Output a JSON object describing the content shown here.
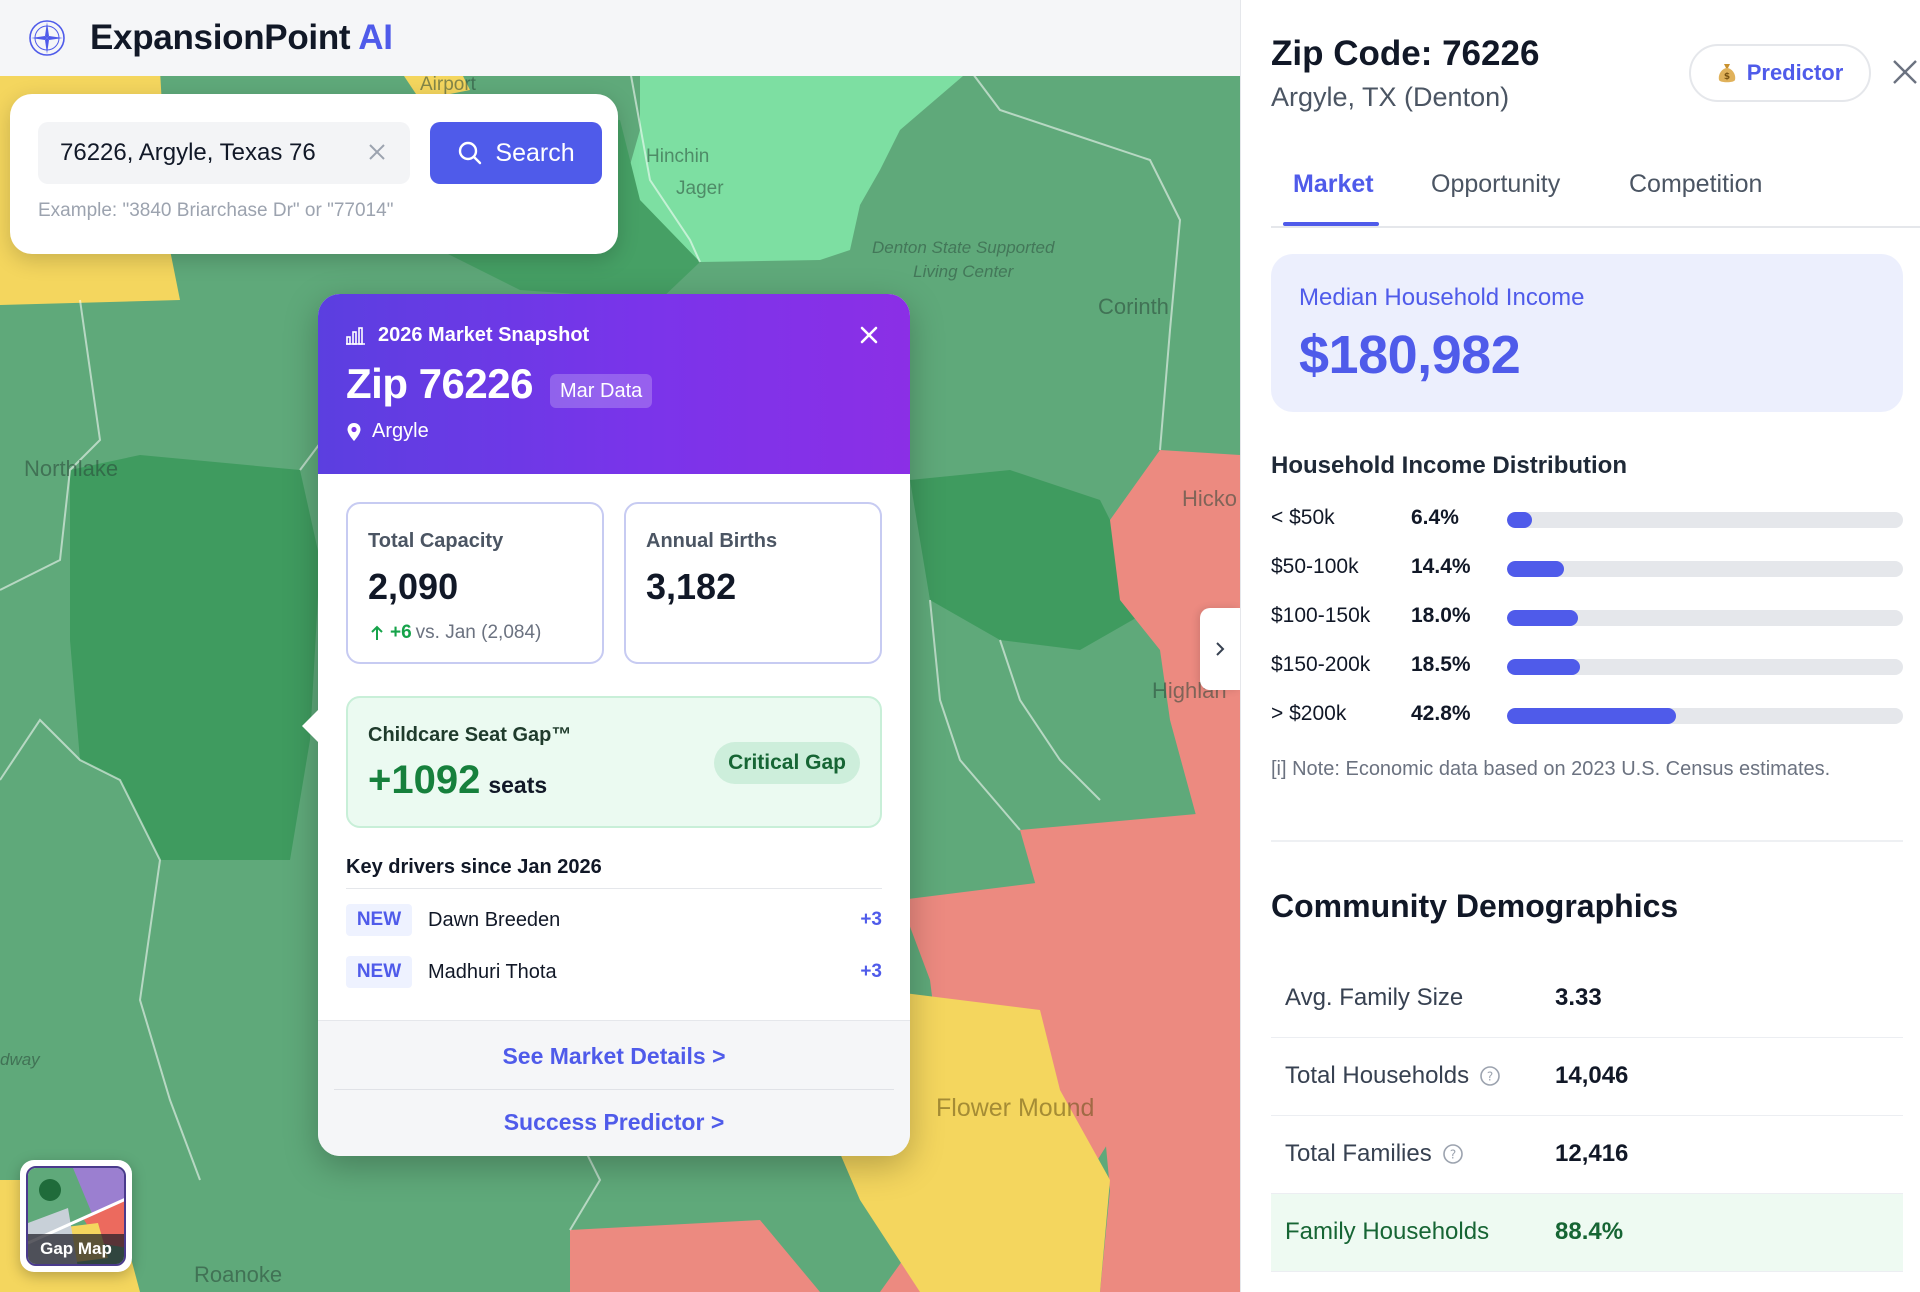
{
  "app": {
    "brand": "ExpansionPoint",
    "brand_ai": "AI"
  },
  "map": {
    "labels": [
      "Airport",
      "Hinchin",
      "Jager",
      "Denton State Supported",
      "Living Center",
      "Corinth",
      "Northlake",
      "Hicko",
      "Highlan",
      "Flower Mound",
      "Roanoke",
      "dway"
    ],
    "colors": {
      "green": "#5fa97a",
      "light_green": "#7ddfa2",
      "dark_green": "#3f9b5f",
      "red": "#ec8a80",
      "yellow": "#f4d65e"
    }
  },
  "search": {
    "value": "76226, Argyle, Texas 76",
    "button_label": "Search",
    "hint": "Example: \"3840 Briarchase Dr\" or \"77014\""
  },
  "snapshot": {
    "eyebrow": "2026 Market Snapshot",
    "zip": "Zip 76226",
    "badge": "Mar Data",
    "location": "Argyle",
    "stats": [
      {
        "label": "Total Capacity",
        "value": "2,090",
        "delta_value": "+6",
        "delta_rest": "vs. Jan (2,084)"
      },
      {
        "label": "Annual Births",
        "value": "3,182"
      }
    ],
    "gap": {
      "label": "Childcare Seat Gap™",
      "value": "+1092",
      "unit": "seats",
      "status": "Critical Gap"
    },
    "drivers_title": "Key drivers since Jan 2026",
    "drivers": [
      {
        "tag": "NEW",
        "name": "Dawn Breeden",
        "delta": "+3"
      },
      {
        "tag": "NEW",
        "name": "Madhuri Thota",
        "delta": "+3"
      }
    ],
    "links": {
      "details": "See Market Details >",
      "predictor": "Success Predictor >"
    }
  },
  "gapmap": {
    "label": "Gap Map"
  },
  "panel": {
    "title": "Zip Code: 76226",
    "subtitle": "Argyle, TX (Denton)",
    "predictor_label": "Predictor",
    "tabs": [
      {
        "label": "Market",
        "active": true
      },
      {
        "label": "Opportunity",
        "active": false
      },
      {
        "label": "Competition",
        "active": false
      }
    ],
    "income": {
      "label": "Median Household Income",
      "value": "$180,982"
    },
    "distribution_title": "Household Income Distribution",
    "distribution": [
      {
        "label": "< $50k",
        "pct": "6.4%",
        "value": 6.4
      },
      {
        "label": "$50-100k",
        "pct": "14.4%",
        "value": 14.4
      },
      {
        "label": "$100-150k",
        "pct": "18.0%",
        "value": 18.0
      },
      {
        "label": "$150-200k",
        "pct": "18.5%",
        "value": 18.5
      },
      {
        "label": "> $200k",
        "pct": "42.8%",
        "value": 42.8
      }
    ],
    "note": "[i] Note: Economic data based on 2023 U.S. Census estimates.",
    "demographics_title": "Community Demographics",
    "demographics": [
      {
        "label": "Avg. Family Size",
        "value": "3.33",
        "help": false
      },
      {
        "label": "Total Households",
        "value": "14,046",
        "help": true
      },
      {
        "label": "Total Families",
        "value": "12,416",
        "help": true
      },
      {
        "label": "Family Households",
        "value": "88.4%",
        "help": false,
        "highlight": true
      }
    ]
  }
}
